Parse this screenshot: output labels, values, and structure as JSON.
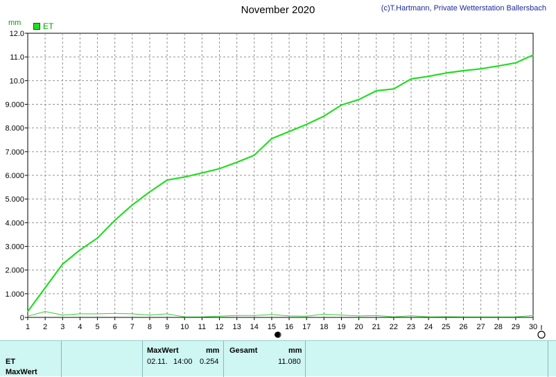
{
  "header": {
    "title": "November 2020",
    "copyright": "(c)T.Hartmann, Private Wetterstation Ballersbach",
    "unit": "mm",
    "legend_label": "ET"
  },
  "colors": {
    "series_main": "#22dd22",
    "series_daily": "#33cc33",
    "grid": "#909090"
  },
  "chart_data": {
    "type": "line",
    "title": "November 2020",
    "ylabel": "mm",
    "xlabel": "",
    "ylim": [
      0,
      12
    ],
    "xlim": [
      1,
      30
    ],
    "grid": true,
    "legend": "top-left",
    "y_ticks": [
      "0",
      "1.000",
      "2.000",
      "3.000",
      "4.000",
      "5.000",
      "6.000",
      "7.000",
      "8.000",
      "9.000",
      "10.0",
      "11.0",
      "12.0"
    ],
    "x_ticks": [
      "1",
      "2",
      "3",
      "4",
      "5",
      "6",
      "7",
      "8",
      "9",
      "10",
      "11",
      "12",
      "13",
      "14",
      "15",
      "16",
      "17",
      "18",
      "19",
      "20",
      "21",
      "22",
      "23",
      "24",
      "25",
      "26",
      "27",
      "28",
      "29",
      "30"
    ],
    "series": [
      {
        "name": "ET",
        "x": [
          1,
          2,
          3,
          4,
          5,
          6,
          7,
          8,
          9,
          10,
          11,
          12,
          13,
          14,
          15,
          16,
          17,
          18,
          19,
          20,
          21,
          22,
          23,
          24,
          25,
          26,
          27,
          28,
          29,
          30
        ],
        "values": [
          0.25,
          1.25,
          2.25,
          2.85,
          3.35,
          4.1,
          4.75,
          5.3,
          5.8,
          5.93,
          6.1,
          6.28,
          6.55,
          6.85,
          7.55,
          7.85,
          8.15,
          8.5,
          8.97,
          9.2,
          9.57,
          9.65,
          10.07,
          10.18,
          10.32,
          10.42,
          10.5,
          10.62,
          10.75,
          11.08
        ]
      },
      {
        "x": [
          1,
          2,
          3,
          4,
          5,
          6,
          7,
          8,
          9,
          10,
          11,
          12,
          13,
          14,
          15,
          16,
          17,
          18,
          19,
          20,
          21,
          22,
          23,
          24,
          25,
          26,
          27,
          28,
          29,
          30
        ],
        "values": [
          0.05,
          0.25,
          0.1,
          0.15,
          0.15,
          0.17,
          0.15,
          0.1,
          0.15,
          0.02,
          0.02,
          0.05,
          0.08,
          0.08,
          0.12,
          0.06,
          0.05,
          0.14,
          0.1,
          0.06,
          0.08,
          0.02,
          0.07,
          0.02,
          0.03,
          0.02,
          0.02,
          0.02,
          0.02,
          0.08
        ]
      }
    ]
  },
  "footer": {
    "row_label_1": "ET",
    "row_label_2": "MaxWert",
    "max_header": "MaxWert",
    "max_unit": "mm",
    "max_date": "02.11.",
    "max_time": "14:00",
    "max_value": "0.254",
    "total_header": "Gesamt",
    "total_unit": "mm",
    "total_value": "11.080"
  }
}
